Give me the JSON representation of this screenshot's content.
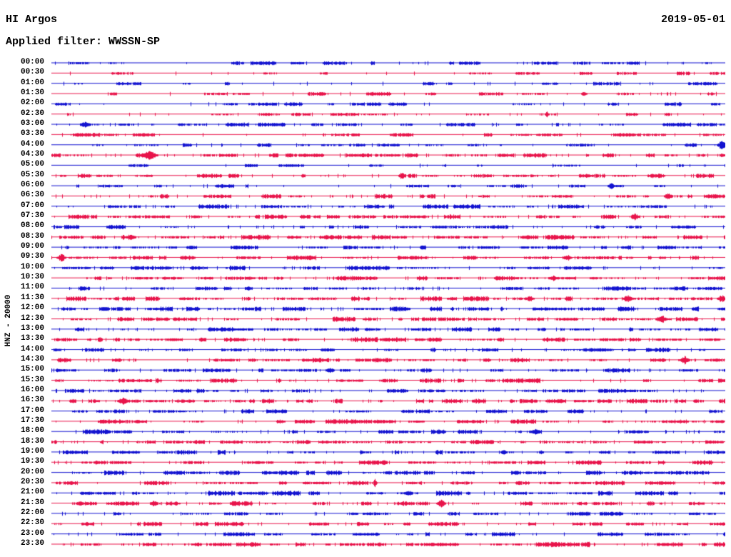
{
  "header": {
    "station": "HI Argos",
    "date": "2019-05-01",
    "filter_line": "Applied filter: WWSSN-SP"
  },
  "axis": {
    "channel_scale_label": "HNZ - 20000"
  },
  "chart_data": {
    "type": "line",
    "subtype": "helicorder-seismogram",
    "title": "HI Argos",
    "date": "2019-05-01",
    "filter": "WWSSN-SP",
    "channel": "HNZ",
    "gain": "20000",
    "row_interval_minutes": 30,
    "rows_count": 48,
    "legend_position": "none",
    "grid": false,
    "trace_colors": {
      "blue": "#1212d0",
      "red": "#e8134a"
    },
    "rows": [
      {
        "time": "00:00",
        "color": "blue",
        "noise": 0.22
      },
      {
        "time": "00:30",
        "color": "red",
        "noise": 0.16
      },
      {
        "time": "01:00",
        "color": "blue",
        "noise": 0.18
      },
      {
        "time": "01:30",
        "color": "red",
        "noise": 0.22
      },
      {
        "time": "02:00",
        "color": "blue",
        "noise": 0.18
      },
      {
        "time": "02:30",
        "color": "red",
        "noise": 0.26
      },
      {
        "time": "03:00",
        "color": "blue",
        "noise": 0.3
      },
      {
        "time": "03:30",
        "color": "red",
        "noise": 0.22
      },
      {
        "time": "04:00",
        "color": "blue",
        "noise": 0.26
      },
      {
        "time": "04:30",
        "color": "red",
        "noise": 0.4
      },
      {
        "time": "05:00",
        "color": "blue",
        "noise": 0.14
      },
      {
        "time": "05:30",
        "color": "red",
        "noise": 0.4
      },
      {
        "time": "06:00",
        "color": "blue",
        "noise": 0.28
      },
      {
        "time": "06:30",
        "color": "red",
        "noise": 0.46
      },
      {
        "time": "07:00",
        "color": "blue",
        "noise": 0.36
      },
      {
        "time": "07:30",
        "color": "red",
        "noise": 0.46
      },
      {
        "time": "08:00",
        "color": "blue",
        "noise": 0.42
      },
      {
        "time": "08:30",
        "color": "red",
        "noise": 0.55
      },
      {
        "time": "09:00",
        "color": "blue",
        "noise": 0.32
      },
      {
        "time": "09:30",
        "color": "red",
        "noise": 0.5
      },
      {
        "time": "10:00",
        "color": "blue",
        "noise": 0.46
      },
      {
        "time": "10:30",
        "color": "red",
        "noise": 0.55
      },
      {
        "time": "11:00",
        "color": "blue",
        "noise": 0.46
      },
      {
        "time": "11:30",
        "color": "red",
        "noise": 0.6
      },
      {
        "time": "12:00",
        "color": "blue",
        "noise": 0.5
      },
      {
        "time": "12:30",
        "color": "red",
        "noise": 0.55
      },
      {
        "time": "13:00",
        "color": "blue",
        "noise": 0.42
      },
      {
        "time": "13:30",
        "color": "red",
        "noise": 0.6
      },
      {
        "time": "14:00",
        "color": "blue",
        "noise": 0.46
      },
      {
        "time": "14:30",
        "color": "red",
        "noise": 0.55
      },
      {
        "time": "15:00",
        "color": "blue",
        "noise": 0.42
      },
      {
        "time": "15:30",
        "color": "red",
        "noise": 0.52
      },
      {
        "time": "16:00",
        "color": "blue",
        "noise": 0.42
      },
      {
        "time": "16:30",
        "color": "red",
        "noise": 0.55
      },
      {
        "time": "17:00",
        "color": "blue",
        "noise": 0.42
      },
      {
        "time": "17:30",
        "color": "red",
        "noise": 0.48
      },
      {
        "time": "18:00",
        "color": "blue",
        "noise": 0.56
      },
      {
        "time": "18:30",
        "color": "red",
        "noise": 0.52
      },
      {
        "time": "19:00",
        "color": "blue",
        "noise": 0.48
      },
      {
        "time": "19:30",
        "color": "red",
        "noise": 0.44
      },
      {
        "time": "20:00",
        "color": "blue",
        "noise": 0.48
      },
      {
        "time": "20:30",
        "color": "red",
        "noise": 0.38
      },
      {
        "time": "21:00",
        "color": "blue",
        "noise": 0.52
      },
      {
        "time": "21:30",
        "color": "red",
        "noise": 0.52
      },
      {
        "time": "22:00",
        "color": "blue",
        "noise": 0.34
      },
      {
        "time": "22:30",
        "color": "red",
        "noise": 0.36
      },
      {
        "time": "23:00",
        "color": "blue",
        "noise": 0.34
      },
      {
        "time": "23:30",
        "color": "red",
        "noise": 0.62
      }
    ],
    "events": [
      {
        "row": 3,
        "time": "01:30",
        "pos": 0.79,
        "amp": 2.5,
        "width": 4
      },
      {
        "row": 5,
        "time": "02:30",
        "pos": 0.735,
        "amp": 4,
        "width": 2
      },
      {
        "row": 6,
        "time": "03:00",
        "pos": 0.05,
        "amp": 3.5,
        "width": 7
      },
      {
        "row": 8,
        "time": "04:00",
        "pos": 0.995,
        "amp": 6,
        "width": 5
      },
      {
        "row": 9,
        "time": "04:30",
        "pos": 0.145,
        "amp": 6.5,
        "width": 8
      },
      {
        "row": 11,
        "time": "05:30",
        "pos": 0.52,
        "amp": 5,
        "width": 4
      },
      {
        "row": 11,
        "time": "05:30",
        "pos": 0.9,
        "amp": 2.5,
        "width": 9
      },
      {
        "row": 12,
        "time": "06:00",
        "pos": 0.83,
        "amp": 4,
        "width": 4
      },
      {
        "row": 13,
        "time": "06:30",
        "pos": 0.915,
        "amp": 4.5,
        "width": 5
      },
      {
        "row": 15,
        "time": "07:30",
        "pos": 0.865,
        "amp": 4.5,
        "width": 5
      },
      {
        "row": 17,
        "time": "08:30",
        "pos": 0.118,
        "amp": 4,
        "width": 6
      },
      {
        "row": 18,
        "time": "09:00",
        "pos": 0.55,
        "amp": 3,
        "width": 3
      },
      {
        "row": 19,
        "time": "09:30",
        "pos": 0.015,
        "amp": 5,
        "width": 5
      },
      {
        "row": 19,
        "time": "09:30",
        "pos": 0.765,
        "amp": 4,
        "width": 5
      },
      {
        "row": 21,
        "time": "10:30",
        "pos": 0.745,
        "amp": 3.5,
        "width": 4
      },
      {
        "row": 23,
        "time": "11:30",
        "pos": 0.71,
        "amp": 3.5,
        "width": 5
      },
      {
        "row": 23,
        "time": "11:30",
        "pos": 0.855,
        "amp": 4.5,
        "width": 6
      },
      {
        "row": 23,
        "time": "11:30",
        "pos": 0.995,
        "amp": 4.5,
        "width": 5
      },
      {
        "row": 25,
        "time": "12:30",
        "pos": 0.905,
        "amp": 5.5,
        "width": 6
      },
      {
        "row": 27,
        "time": "13:30",
        "pos": 0.665,
        "amp": 3,
        "width": 4
      },
      {
        "row": 29,
        "time": "14:30",
        "pos": 0.94,
        "amp": 5.5,
        "width": 5
      },
      {
        "row": 30,
        "time": "15:00",
        "pos": 0.413,
        "amp": 4,
        "width": 5
      },
      {
        "row": 33,
        "time": "16:30",
        "pos": 0.106,
        "amp": 4.5,
        "width": 6
      },
      {
        "row": 36,
        "time": "18:00",
        "pos": 0.718,
        "amp": 3.5,
        "width": 6
      },
      {
        "row": 38,
        "time": "19:00",
        "pos": 0.46,
        "amp": 3.5,
        "width": 2
      },
      {
        "row": 38,
        "time": "19:00",
        "pos": 0.672,
        "amp": 3.5,
        "width": 4
      },
      {
        "row": 41,
        "time": "20:30",
        "pos": 0.48,
        "amp": 5.5,
        "width": 2
      },
      {
        "row": 42,
        "time": "21:00",
        "pos": 0.53,
        "amp": 3,
        "width": 6
      },
      {
        "row": 43,
        "time": "21:30",
        "pos": 0.152,
        "amp": 4,
        "width": 5
      },
      {
        "row": 43,
        "time": "21:30",
        "pos": 0.578,
        "amp": 5,
        "width": 5
      },
      {
        "row": 46,
        "time": "23:00",
        "pos": 0.483,
        "amp": 2.5,
        "width": 3
      }
    ]
  }
}
